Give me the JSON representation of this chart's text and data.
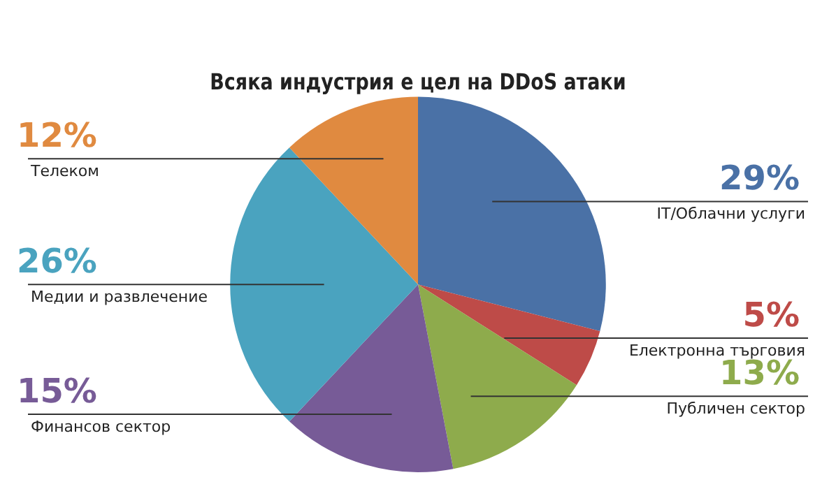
{
  "chart_data": {
    "type": "pie",
    "title": "Всяка индустрия е цел на DDoS атаки",
    "categories": [
      "IT/Облачни услуги",
      "Електронна търговия",
      "Публичен сектор",
      "Финансов сектор",
      "Медии и развлечение",
      "Телеком"
    ],
    "values": [
      29,
      5,
      13,
      15,
      26,
      12
    ],
    "colors": [
      "#4a71a6",
      "#be4b48",
      "#8eab4c",
      "#775b97",
      "#4aa3bf",
      "#e08a40"
    ],
    "value_labels": [
      "29%",
      "5%",
      "13%",
      "15%",
      "26%",
      "12%"
    ],
    "legend": false
  }
}
